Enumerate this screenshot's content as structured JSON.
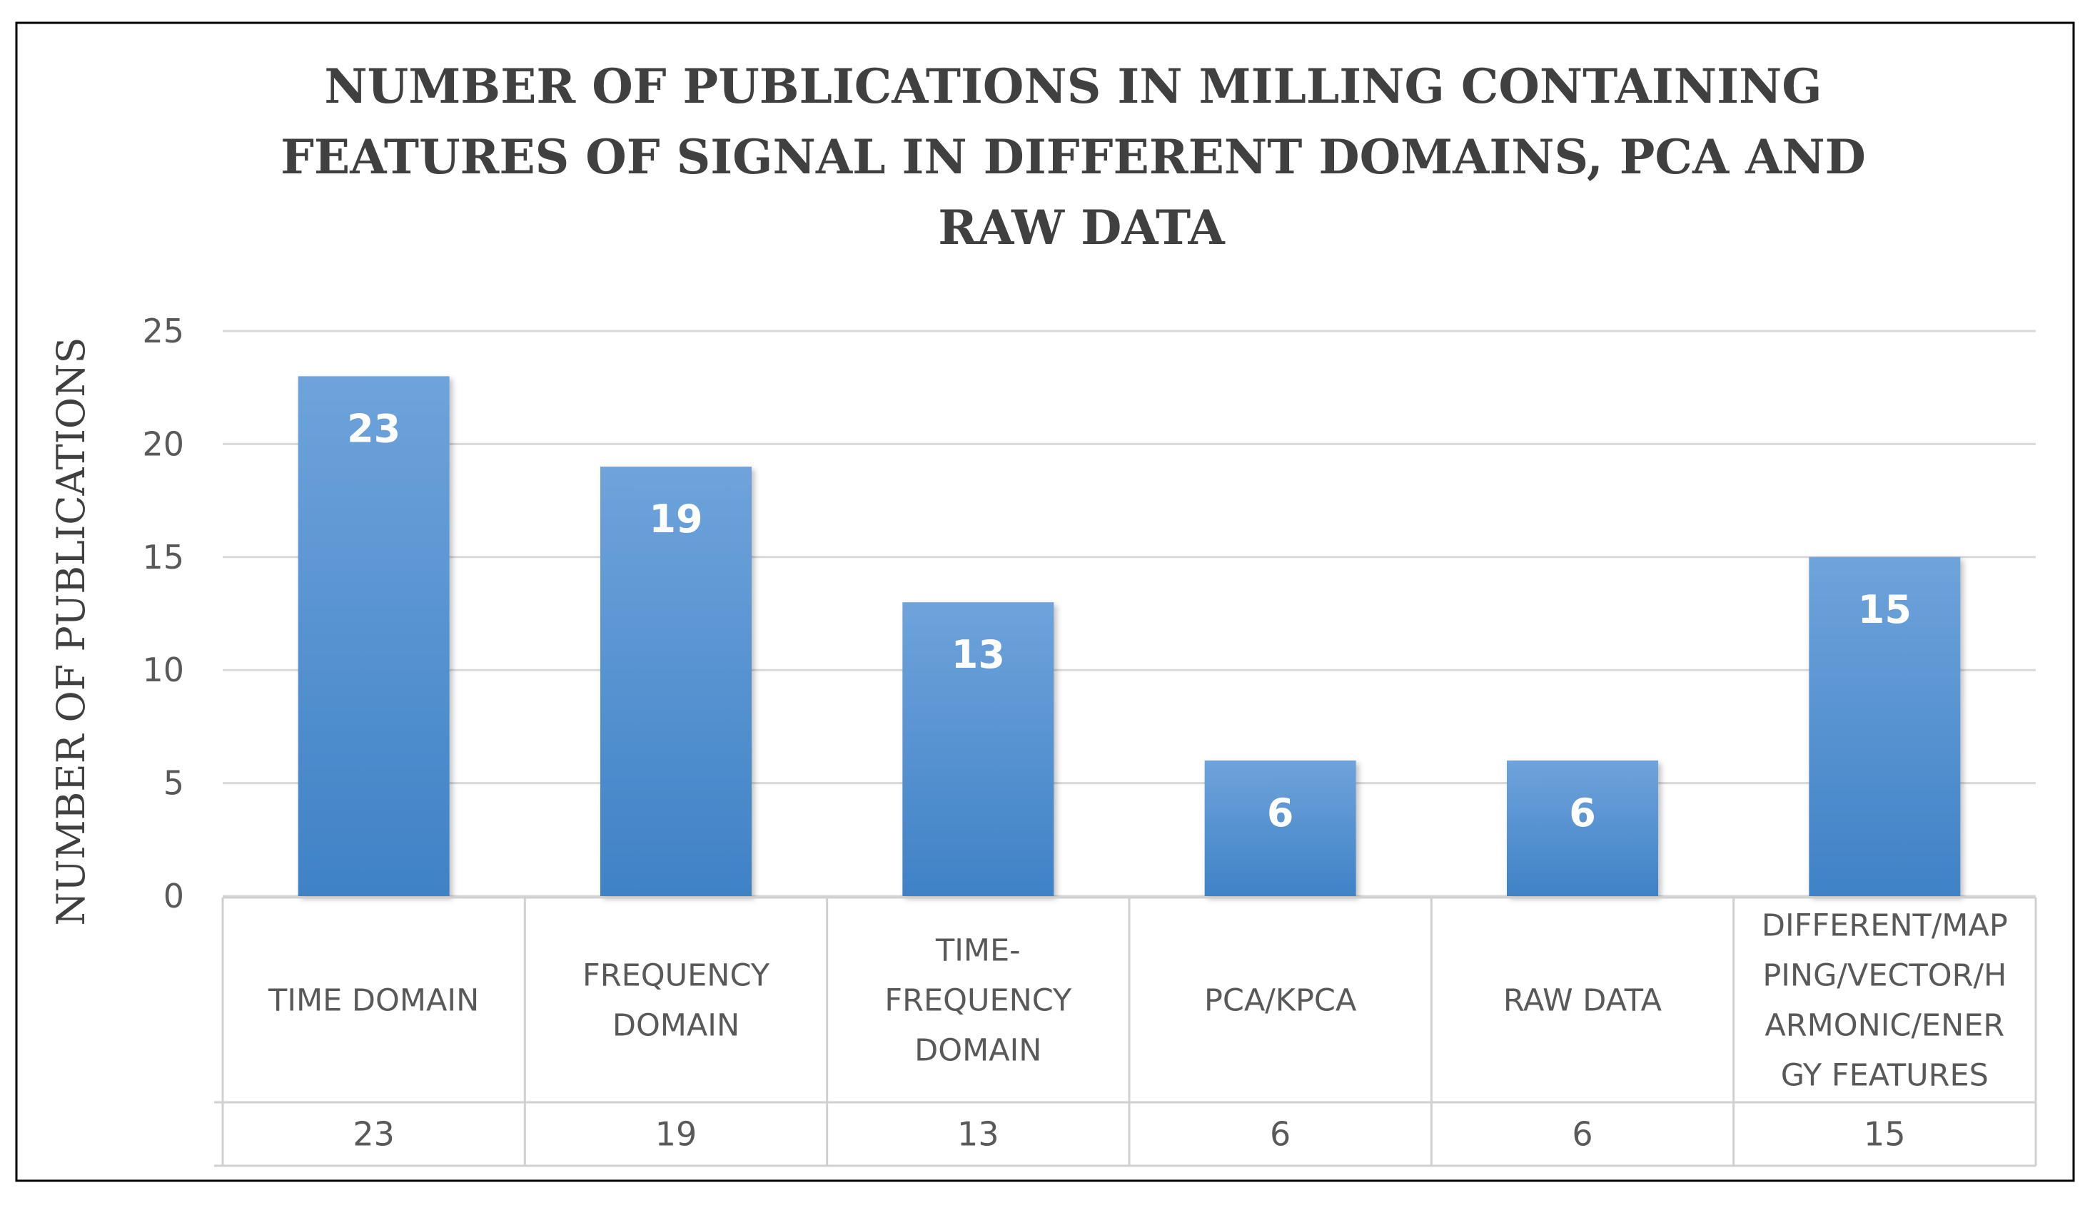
{
  "chart_data": {
    "type": "bar",
    "title": "NUMBER OF PUBLICATIONS IN MILLING CONTAINING FEATURES OF SIGNAL IN DIFFERENT DOMAINS, PCA AND RAW DATA",
    "title_lines": [
      "NUMBER OF PUBLICATIONS IN MILLING CONTAINING",
      "FEATURES OF SIGNAL IN DIFFERENT DOMAINS, PCA AND",
      "RAW DATA"
    ],
    "ylabel": "NUMBER OF PUBLICATIONS",
    "xlabel": "",
    "ylim": [
      0,
      25
    ],
    "yticks": [
      0,
      5,
      10,
      15,
      20,
      25
    ],
    "grid": true,
    "data_table": true,
    "categories": [
      "TIME DOMAIN",
      "FREQUENCY DOMAIN",
      "TIME-FREQUENCY DOMAIN",
      "PCA/KPCA",
      "RAW DATA",
      "DIFFERENT/MAPPING/VECTOR/HARMONIC/ENERGY FEATURES"
    ],
    "category_lines": [
      [
        "TIME DOMAIN"
      ],
      [
        "FREQUENCY",
        "DOMAIN"
      ],
      [
        "TIME-",
        "FREQUENCY",
        "DOMAIN"
      ],
      [
        "PCA/KPCA"
      ],
      [
        "RAW DATA"
      ],
      [
        "DIFFERENT/MAP",
        "PING/VECTOR/H",
        "ARMONIC/ENER",
        "GY FEATURES"
      ]
    ],
    "values": [
      23,
      19,
      13,
      6,
      6,
      15
    ],
    "colors": {
      "bar_top": "#6fa3db",
      "bar_bottom": "#3f82c6",
      "grid": "#d9d9d9",
      "frame": "#000000"
    }
  }
}
